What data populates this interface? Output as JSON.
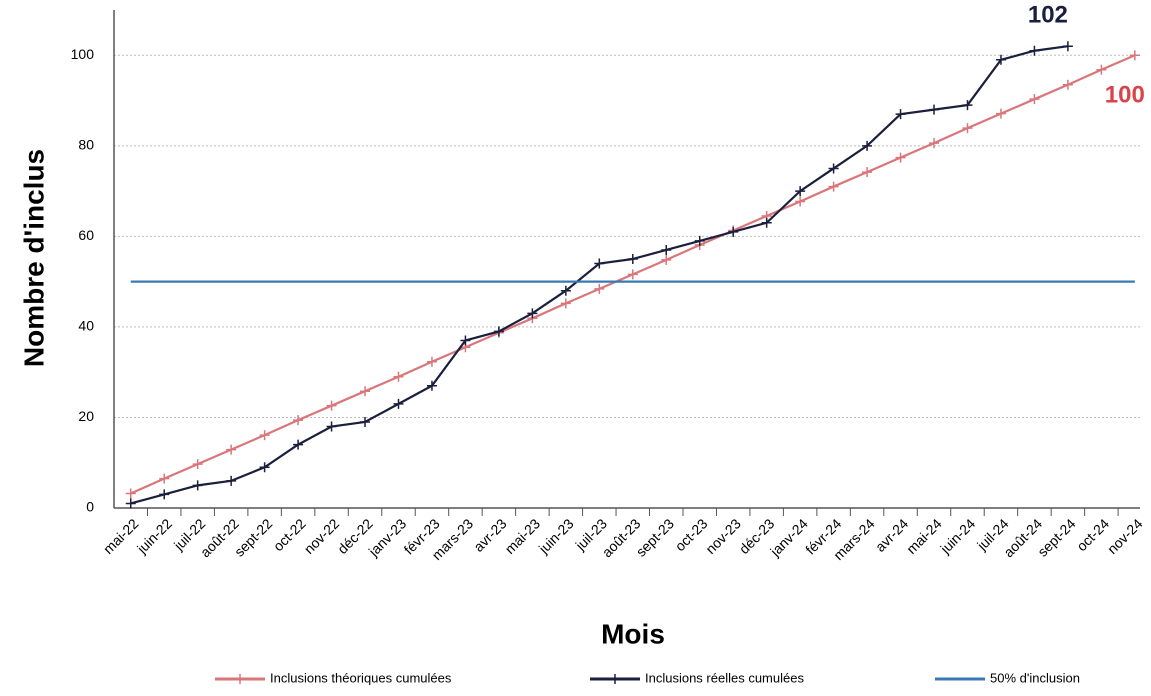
{
  "chart_data": {
    "type": "line",
    "x_label": "Mois",
    "y_label": "Nombre d'inclus",
    "categories": [
      "mai-22",
      "juin-22",
      "juil-22",
      "août-22",
      "sept-22",
      "oct-22",
      "nov-22",
      "déc-22",
      "janv-23",
      "févr-23",
      "mars-23",
      "avr-23",
      "mai-23",
      "juin-23",
      "juil-23",
      "août-23",
      "sept-23",
      "oct-23",
      "nov-23",
      "déc-23",
      "janv-24",
      "févr-24",
      "mars-24",
      "avr-24",
      "mai-24",
      "juin-24",
      "juil-24",
      "août-24",
      "sept-24",
      "oct-24",
      "nov-24"
    ],
    "series": [
      {
        "name": "Inclusions théoriques cumulées",
        "color": "#d9767a",
        "marker": true,
        "values": [
          3.2,
          6.5,
          9.7,
          12.9,
          16.1,
          19.4,
          22.6,
          25.8,
          29.0,
          32.3,
          35.5,
          38.7,
          41.9,
          45.2,
          48.4,
          51.6,
          54.8,
          58.1,
          61.3,
          64.5,
          67.7,
          71.0,
          74.2,
          77.4,
          80.6,
          83.9,
          87.1,
          90.3,
          93.5,
          96.8,
          100
        ]
      },
      {
        "name": "Inclusions réelles cumulées",
        "color": "#1a1f3d",
        "marker": true,
        "values": [
          1,
          3,
          5,
          6,
          9,
          14,
          18,
          19,
          23,
          27,
          37,
          39,
          43,
          48,
          54,
          55,
          57,
          59,
          61,
          63,
          70,
          75,
          80,
          87,
          88,
          89,
          99,
          101,
          102,
          null,
          null
        ]
      },
      {
        "name": "50% d'inclusion",
        "color": "#3a78b5",
        "marker": false,
        "values": [
          50,
          50,
          50,
          50,
          50,
          50,
          50,
          50,
          50,
          50,
          50,
          50,
          50,
          50,
          50,
          50,
          50,
          50,
          50,
          50,
          50,
          50,
          50,
          50,
          50,
          50,
          50,
          50,
          50,
          50,
          50
        ]
      }
    ],
    "data_labels": [
      {
        "series": 1,
        "index": 28,
        "color": "#1a1f3d"
      },
      {
        "series": 0,
        "index": 30,
        "color": "#d9434a"
      }
    ],
    "ylim": [
      0,
      110
    ],
    "yticks": [
      0,
      20,
      40,
      60,
      80,
      100
    ],
    "grid": true
  }
}
